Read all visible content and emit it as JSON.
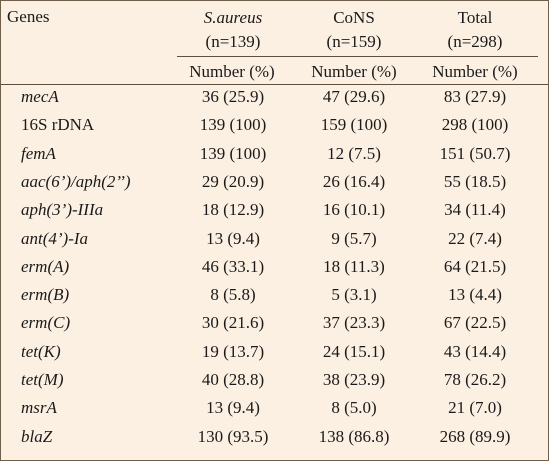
{
  "header": {
    "genes_label": "Genes",
    "col1_name": "S.aureus",
    "col1_n": "(n=139)",
    "col2_name": "CoNS",
    "col2_n": "(n=159)",
    "col3_name": "Total",
    "col3_n": "(n=298)",
    "subheader": [
      "Number (%)",
      "Number (%)",
      "Number (%)"
    ]
  },
  "rows": [
    {
      "gene": "mecA",
      "italic": true,
      "saureus": "36 (25.9)",
      "cons": "47 (29.6)",
      "total": "83 (27.9)"
    },
    {
      "gene": "16S rDNA",
      "italic": false,
      "saureus": "139 (100)",
      "cons": "159 (100)",
      "total": "298 (100)"
    },
    {
      "gene": "femA",
      "italic": true,
      "saureus": "139 (100)",
      "cons": "12 (7.5)",
      "total": "151 (50.7)"
    },
    {
      "gene": "aac(6’)/aph(2’’)",
      "italic": true,
      "saureus": "29 (20.9)",
      "cons": "26 (16.4)",
      "total": "55 (18.5)"
    },
    {
      "gene": "aph(3’)-IIIa",
      "italic": true,
      "saureus": "18 (12.9)",
      "cons": "16 (10.1)",
      "total": "34 (11.4)"
    },
    {
      "gene": "ant(4’)-Ia",
      "italic": true,
      "saureus": "13 (9.4)",
      "cons": "9 (5.7)",
      "total": "22 (7.4)"
    },
    {
      "gene": "erm(A)",
      "italic": true,
      "saureus": "46 (33.1)",
      "cons": "18 (11.3)",
      "total": "64 (21.5)"
    },
    {
      "gene": "erm(B)",
      "italic": true,
      "saureus": "8 (5.8)",
      "cons": "5 (3.1)",
      "total": "13 (4.4)"
    },
    {
      "gene": "erm(C)",
      "italic": true,
      "saureus": "30 (21.6)",
      "cons": "37 (23.3)",
      "total": "67 (22.5)"
    },
    {
      "gene": "tet(K)",
      "italic": true,
      "saureus": "19 (13.7)",
      "cons": "24 (15.1)",
      "total": "43 (14.4)"
    },
    {
      "gene": "tet(M)",
      "italic": true,
      "saureus": "40 (28.8)",
      "cons": "38 (23.9)",
      "total": "78 (26.2)"
    },
    {
      "gene": "msrA",
      "italic": true,
      "saureus": "13 (9.4)",
      "cons": "8 (5.0)",
      "total": "21 (7.0)"
    },
    {
      "gene": "blaZ",
      "italic": true,
      "saureus": "130 (93.5)",
      "cons": "138 (86.8)",
      "total": "268 (89.9)"
    }
  ]
}
